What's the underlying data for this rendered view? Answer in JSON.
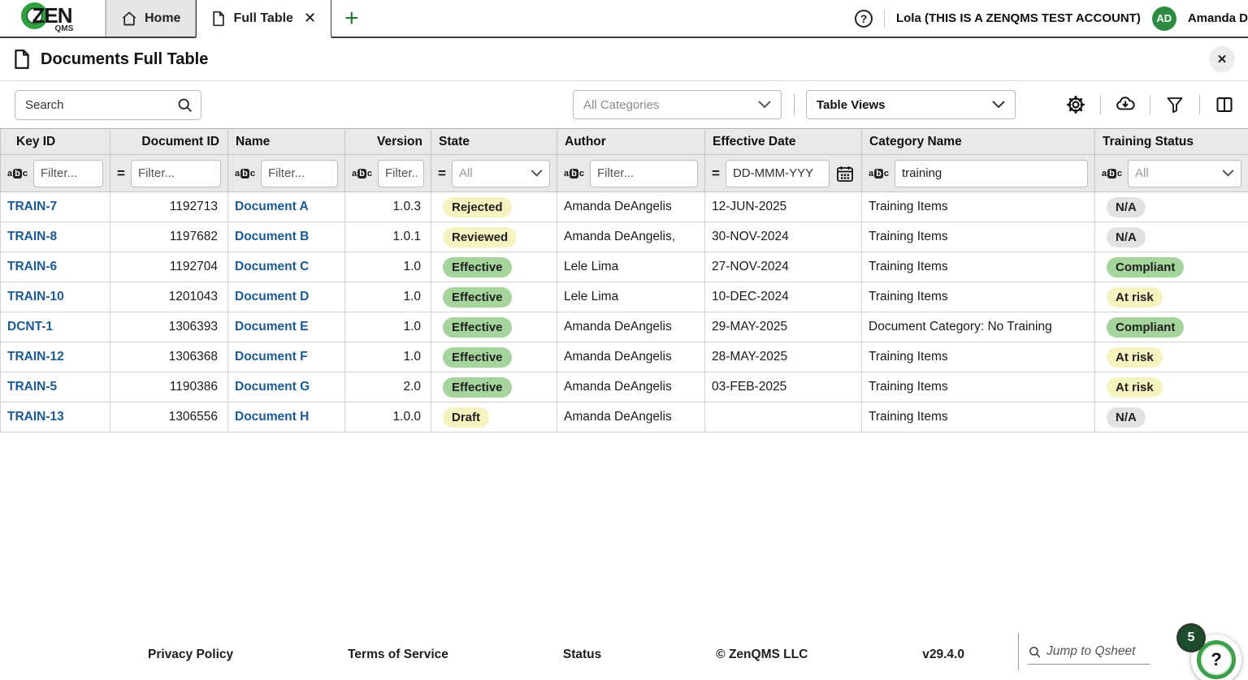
{
  "brand": {
    "logo_main": "ZEN",
    "logo_sub": "QMS"
  },
  "tabs": {
    "home_label": "Home",
    "active_tab_label": "Full Table",
    "close_glyph": "✕",
    "add_glyph": "+"
  },
  "account": {
    "org_label": "Lola (THIS IS A ZENQMS TEST ACCOUNT)",
    "avatar_initials": "AD",
    "user_name": "Amanda D"
  },
  "page": {
    "title": "Documents Full Table",
    "close_glyph": "✕"
  },
  "toolbar": {
    "search_placeholder": "Search",
    "categories_value": "All Categories",
    "views_value": "Table Views"
  },
  "table": {
    "columns": [
      {
        "label": "Key ID",
        "align": "left",
        "filter": {
          "icon": "abc",
          "kind": "input",
          "placeholder": "Filter...",
          "value": ""
        }
      },
      {
        "label": "Document ID",
        "align": "right",
        "filter": {
          "icon": "equals",
          "kind": "input",
          "placeholder": "Filter...",
          "value": ""
        }
      },
      {
        "label": "Name",
        "align": "left",
        "filter": {
          "icon": "abc",
          "kind": "input",
          "placeholder": "Filter...",
          "value": ""
        }
      },
      {
        "label": "Version",
        "align": "right",
        "filter": {
          "icon": "abc",
          "kind": "input",
          "placeholder": "Filter...",
          "value": ""
        }
      },
      {
        "label": "State",
        "align": "left",
        "filter": {
          "icon": "equals",
          "kind": "select",
          "value": "All"
        }
      },
      {
        "label": "Author",
        "align": "left",
        "filter": {
          "icon": "abc",
          "kind": "input",
          "placeholder": "Filter...",
          "value": ""
        }
      },
      {
        "label": "Effective Date",
        "align": "left",
        "filter": {
          "icon": "equals",
          "kind": "date",
          "placeholder": "DD-MMM-YYY",
          "value": ""
        }
      },
      {
        "label": "Category Name",
        "align": "left",
        "filter": {
          "icon": "abc",
          "kind": "input",
          "placeholder": "Filter...",
          "value": "training"
        }
      },
      {
        "label": "Training Status",
        "align": "left",
        "filter": {
          "icon": "abc",
          "kind": "select",
          "value": "All"
        }
      }
    ],
    "rows": [
      {
        "key_id": "TRAIN-7",
        "doc_id": "1192713",
        "name": "Document A",
        "version": "1.0.3",
        "state": "Rejected",
        "state_color": "yellow",
        "author": "Amanda DeAngelis",
        "effective_date": "12-JUN-2025",
        "category": "Training Items",
        "training": "N/A",
        "training_color": "gray"
      },
      {
        "key_id": "TRAIN-8",
        "doc_id": "1197682",
        "name": "Document B",
        "version": "1.0.1",
        "state": "Reviewed",
        "state_color": "yellow",
        "author": "Amanda DeAngelis,",
        "effective_date": "30-NOV-2024",
        "category": "Training Items",
        "training": "N/A",
        "training_color": "gray"
      },
      {
        "key_id": "TRAIN-6",
        "doc_id": "1192704",
        "name": "Document C",
        "version": "1.0",
        "state": "Effective",
        "state_color": "green",
        "author": "Lele Lima",
        "effective_date": "27-NOV-2024",
        "category": "Training Items",
        "training": "Compliant",
        "training_color": "green"
      },
      {
        "key_id": "TRAIN-10",
        "doc_id": "1201043",
        "name": "Document D",
        "version": "1.0",
        "state": "Effective",
        "state_color": "green",
        "author": "Lele Lima",
        "effective_date": "10-DEC-2024",
        "category": "Training Items",
        "training": "At risk",
        "training_color": "yellow"
      },
      {
        "key_id": "DCNT-1",
        "doc_id": "1306393",
        "name": "Document E",
        "version": "1.0",
        "state": "Effective",
        "state_color": "green",
        "author": "Amanda DeAngelis",
        "effective_date": "29-MAY-2025",
        "category": "Document Category: No Training",
        "training": "Compliant",
        "training_color": "green"
      },
      {
        "key_id": "TRAIN-12",
        "doc_id": "1306368",
        "name": "Document F",
        "version": "1.0",
        "state": "Effective",
        "state_color": "green",
        "author": "Amanda DeAngelis",
        "effective_date": "28-MAY-2025",
        "category": "Training Items",
        "training": "At risk",
        "training_color": "yellow"
      },
      {
        "key_id": "TRAIN-5",
        "doc_id": "1190386",
        "name": "Document G",
        "version": "2.0",
        "state": "Effective",
        "state_color": "green",
        "author": "Amanda DeAngelis",
        "effective_date": "03-FEB-2025",
        "category": "Training Items",
        "training": "At risk",
        "training_color": "yellow"
      },
      {
        "key_id": "TRAIN-13",
        "doc_id": "1306556",
        "name": "Document H",
        "version": "1.0.0",
        "state": "Draft",
        "state_color": "yellow",
        "author": "Amanda DeAngelis",
        "effective_date": "",
        "category": "Training Items",
        "training": "N/A",
        "training_color": "gray"
      }
    ]
  },
  "footer": {
    "privacy": "Privacy Policy",
    "terms": "Terms of Service",
    "status": "Status",
    "copyright": "© ZenQMS LLC",
    "version": "v29.4.0",
    "jump_placeholder": "Jump to Qsheet",
    "help_badge_count": "5",
    "help_glyph": "?"
  },
  "colors": {
    "brand_green": "#2f9e3f",
    "accent_green_dark": "#1e7a2e",
    "avatar_green": "#2e8b42",
    "link_blue": "#1a5a96",
    "badge_yellow": "#f7f3c0",
    "badge_green": "#a6d49d",
    "badge_gray": "#e2e2e2",
    "help_badge_green": "#1d4d2b"
  }
}
